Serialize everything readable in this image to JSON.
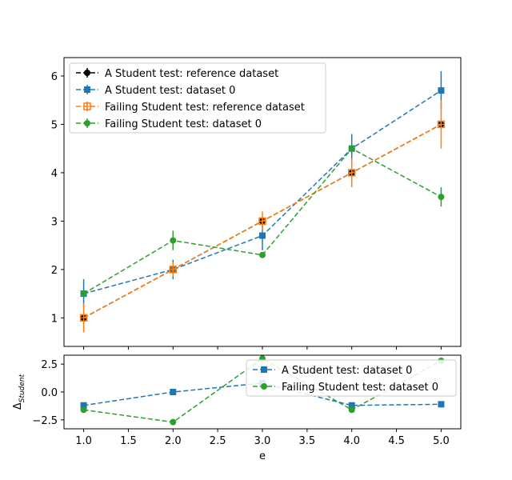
{
  "chart_data": [
    {
      "type": "line",
      "x": [
        1,
        2,
        3,
        4,
        5
      ],
      "xlim": [
        0.78,
        5.22
      ],
      "ylim": [
        0.41,
        6.38
      ],
      "yticks": [
        1,
        2,
        3,
        4,
        5,
        6
      ],
      "legend_position": "upper-left",
      "grid": false,
      "series": [
        {
          "name": "A Student test: reference dataset",
          "color": "#000000",
          "marker": "circle",
          "y": [
            1,
            2,
            3,
            4,
            5
          ],
          "yerr": [
            0,
            0,
            0,
            0,
            0
          ]
        },
        {
          "name": "A Student test: dataset 0",
          "color": "#1f77b4",
          "marker": "square",
          "y": [
            1.5,
            2.0,
            2.7,
            4.5,
            5.7
          ],
          "yerr": [
            0.3,
            0.2,
            0.3,
            0.3,
            0.4
          ]
        },
        {
          "name": "Failing Student test: reference dataset",
          "color": "#ff7f0e",
          "marker": "square-open-cross",
          "y": [
            1,
            2,
            3,
            4,
            5
          ],
          "yerr": [
            0.3,
            0.15,
            0.2,
            0.3,
            0.5
          ]
        },
        {
          "name": "Failing Student test: dataset 0",
          "color": "#2ca02c",
          "marker": "circle",
          "y": [
            1.5,
            2.6,
            2.3,
            4.5,
            3.5
          ],
          "yerr": [
            0.0,
            0.2,
            0.0,
            0.0,
            0.2
          ]
        }
      ]
    },
    {
      "type": "line",
      "x": [
        1,
        2,
        3,
        4,
        5
      ],
      "xlim": [
        0.78,
        5.22
      ],
      "ylim": [
        -3.3,
        3.3
      ],
      "xticks": [
        "1.0",
        "1.5",
        "2.0",
        "2.5",
        "3.0",
        "3.5",
        "4.0",
        "4.5",
        "5.0"
      ],
      "yticks": [
        "−2.5",
        "0.0",
        "2.5"
      ],
      "xlabel": "e",
      "ylabel": "Δ",
      "ylabel_subscript": "Student",
      "legend_position": "upper-right",
      "grid": false,
      "series": [
        {
          "name": "A Student test: dataset 0",
          "color": "#1f77b4",
          "marker": "square",
          "y": [
            -1.2,
            0.0,
            0.8,
            -1.2,
            -1.1
          ]
        },
        {
          "name": "Failing Student test: dataset 0",
          "color": "#2ca02c",
          "marker": "circle",
          "y": [
            -1.6,
            -2.7,
            3.0,
            -1.6,
            2.8
          ]
        }
      ]
    }
  ]
}
